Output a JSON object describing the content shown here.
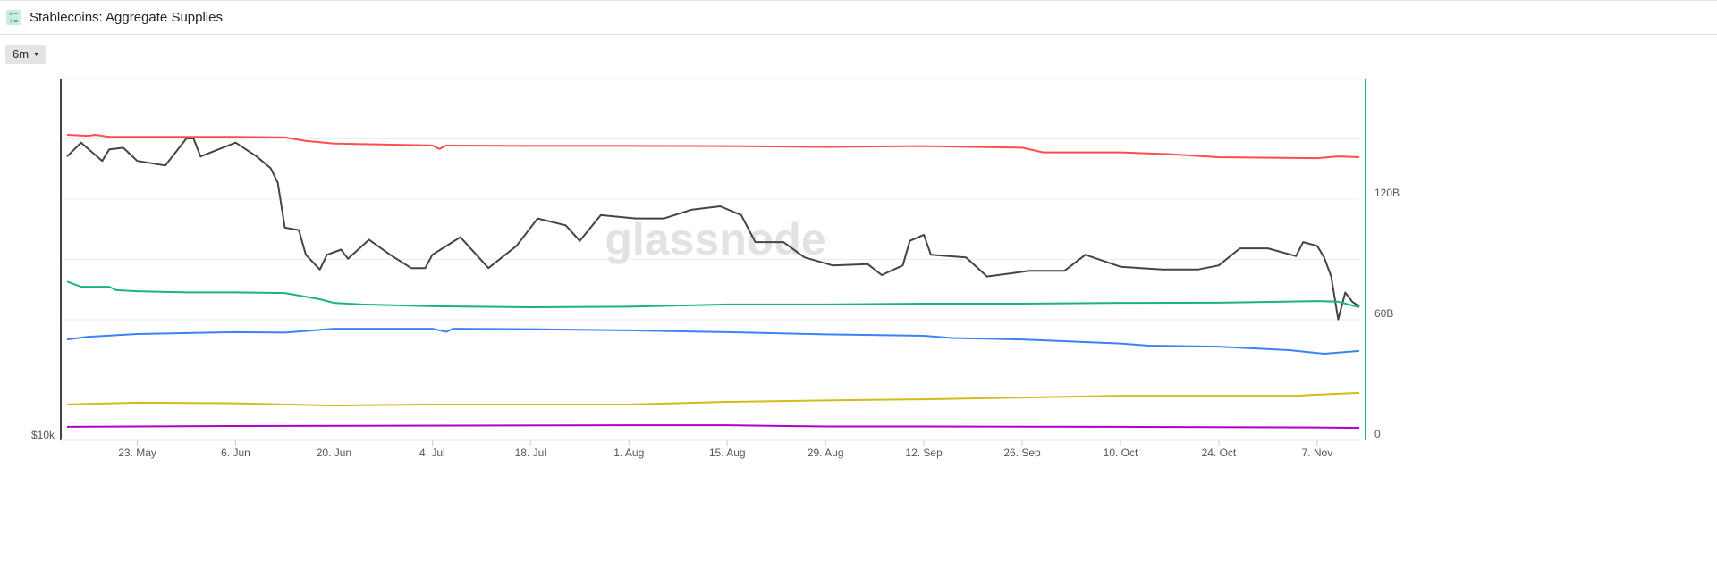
{
  "header": {
    "title": "Stablecoins: Aggregate Supplies",
    "icon": "calculator-icon"
  },
  "controls": {
    "range_label": "6m",
    "caret_icon": "caret-down-icon"
  },
  "watermark": "glassnode",
  "chart_data": {
    "type": "line",
    "title": "Stablecoins: Aggregate Supplies",
    "x_range": [
      "13 May",
      "13 Nov"
    ],
    "x_ticks": [
      "23. May",
      "6. Jun",
      "20. Jun",
      "4. Jul",
      "18. Jul",
      "1. Aug",
      "15. Aug",
      "29. Aug",
      "12. Sep",
      "26. Sep",
      "10. Oct",
      "24. Oct",
      "7. Nov"
    ],
    "x_tick_dates": [
      "23 May",
      "6 Jun",
      "20 Jun",
      "4 Jul",
      "18 Jul",
      "1 Aug",
      "15 Aug",
      "29 Aug",
      "12 Sep",
      "26 Sep",
      "10 Oct",
      "24 Oct",
      "7 Nov"
    ],
    "left_axis": {
      "scale": "log",
      "ticks": [
        "$10k"
      ],
      "tick_values": [
        10000
      ],
      "range": [
        10000,
        35000
      ],
      "color": "#444444"
    },
    "right_axis": {
      "scale": "linear",
      "ticks": [
        "0",
        "60B",
        "120B"
      ],
      "tick_values": [
        0,
        60,
        120
      ],
      "range": [
        0,
        180
      ],
      "unit": "B",
      "color": "#1db47a"
    },
    "grid": true,
    "gridline_values": [
      30,
      60,
      90,
      120,
      150,
      180
    ],
    "series": [
      {
        "axis": "left",
        "color": "#444444",
        "points": [
          [
            "13 May",
            29200
          ],
          [
            "15 May",
            30800
          ],
          [
            "18 May",
            28700
          ],
          [
            "19 May",
            30000
          ],
          [
            "21 May",
            30200
          ],
          [
            "23 May",
            28700
          ],
          [
            "27 May",
            28200
          ],
          [
            "30 May",
            31300
          ],
          [
            "31 May",
            31300
          ],
          [
            "1 Jun",
            29200
          ],
          [
            "6 Jun",
            30800
          ],
          [
            "9 Jun",
            29200
          ],
          [
            "11 Jun",
            27900
          ],
          [
            "12 Jun",
            26400
          ],
          [
            "13 Jun",
            22200
          ],
          [
            "15 Jun",
            22000
          ],
          [
            "16 Jun",
            20000
          ],
          [
            "18 Jun",
            18900
          ],
          [
            "19 Jun",
            20000
          ],
          [
            "21 Jun",
            20400
          ],
          [
            "22 Jun",
            19700
          ],
          [
            "25 Jun",
            21200
          ],
          [
            "28 Jun",
            20000
          ],
          [
            "1 Jul",
            19000
          ],
          [
            "3 Jul",
            19000
          ],
          [
            "4 Jul",
            20000
          ],
          [
            "8 Jul",
            21400
          ],
          [
            "12 Jul",
            19000
          ],
          [
            "16 Jul",
            20700
          ],
          [
            "19 Jul",
            23000
          ],
          [
            "23 Jul",
            22400
          ],
          [
            "25 Jul",
            21100
          ],
          [
            "28 Jul",
            23300
          ],
          [
            "2 Aug",
            23000
          ],
          [
            "6 Aug",
            23000
          ],
          [
            "10 Aug",
            23800
          ],
          [
            "14 Aug",
            24100
          ],
          [
            "17 Aug",
            23300
          ],
          [
            "19 Aug",
            21000
          ],
          [
            "23 Aug",
            21000
          ],
          [
            "26 Aug",
            19800
          ],
          [
            "30 Aug",
            19200
          ],
          [
            "4 Sep",
            19300
          ],
          [
            "6 Sep",
            18500
          ],
          [
            "9 Sep",
            19200
          ],
          [
            "10 Sep",
            21100
          ],
          [
            "12 Sep",
            21600
          ],
          [
            "13 Sep",
            20000
          ],
          [
            "18 Sep",
            19800
          ],
          [
            "21 Sep",
            18400
          ],
          [
            "27 Sep",
            18800
          ],
          [
            "2 Oct",
            18800
          ],
          [
            "5 Oct",
            20000
          ],
          [
            "10 Oct",
            19100
          ],
          [
            "16 Oct",
            18900
          ],
          [
            "21 Oct",
            18900
          ],
          [
            "24 Oct",
            19200
          ],
          [
            "27 Oct",
            20500
          ],
          [
            "31 Oct",
            20500
          ],
          [
            "4 Nov",
            19900
          ],
          [
            "5 Nov",
            21000
          ],
          [
            "7 Nov",
            20700
          ],
          [
            "8 Nov",
            19800
          ],
          [
            "9 Nov",
            18400
          ],
          [
            "10 Nov",
            15600
          ],
          [
            "11 Nov",
            17300
          ],
          [
            "12 Nov",
            16700
          ],
          [
            "13 Nov",
            16400
          ]
        ]
      },
      {
        "axis": "right",
        "color": "#ff4d4d",
        "points": [
          [
            "13 May",
            152
          ],
          [
            "16 May",
            151.5
          ],
          [
            "17 May",
            152
          ],
          [
            "19 May",
            151
          ],
          [
            "23 May",
            151
          ],
          [
            "6 Jun",
            151
          ],
          [
            "13 Jun",
            150.7
          ],
          [
            "16 Jun",
            149
          ],
          [
            "20 Jun",
            147.7
          ],
          [
            "4 Jul",
            146.7
          ],
          [
            "5 Jul",
            145
          ],
          [
            "6 Jul",
            146.7
          ],
          [
            "18 Jul",
            146.5
          ],
          [
            "1 Aug",
            146.5
          ],
          [
            "15 Aug",
            146.4
          ],
          [
            "29 Aug",
            146
          ],
          [
            "12 Sep",
            146.4
          ],
          [
            "26 Sep",
            145.6
          ],
          [
            "29 Sep",
            143.3
          ],
          [
            "10 Oct",
            143.3
          ],
          [
            "17 Oct",
            142.4
          ],
          [
            "24 Oct",
            140.9
          ],
          [
            "7 Nov",
            140.4
          ],
          [
            "10 Nov",
            141.3
          ],
          [
            "13 Nov",
            140.9
          ]
        ]
      },
      {
        "axis": "right",
        "color": "#1db47a",
        "points": [
          [
            "13 May",
            79
          ],
          [
            "15 May",
            76.4
          ],
          [
            "19 May",
            76.4
          ],
          [
            "20 May",
            74.7
          ],
          [
            "23 May",
            74.2
          ],
          [
            "30 May",
            73.6
          ],
          [
            "6 Jun",
            73.6
          ],
          [
            "13 Jun",
            73.3
          ],
          [
            "18 Jun",
            70.2
          ],
          [
            "20 Jun",
            68.4
          ],
          [
            "24 Jun",
            67.6
          ],
          [
            "4 Jul",
            66.7
          ],
          [
            "18 Jul",
            66.2
          ],
          [
            "1 Aug",
            66.5
          ],
          [
            "15 Aug",
            67.6
          ],
          [
            "29 Aug",
            67.6
          ],
          [
            "12 Sep",
            68
          ],
          [
            "26 Sep",
            68
          ],
          [
            "10 Oct",
            68.4
          ],
          [
            "24 Oct",
            68.5
          ],
          [
            "7 Nov",
            69.3
          ],
          [
            "10 Nov",
            69
          ],
          [
            "13 Nov",
            66.2
          ]
        ]
      },
      {
        "axis": "right",
        "color": "#3b82f6",
        "points": [
          [
            "13 May",
            50.2
          ],
          [
            "16 May",
            51.5
          ],
          [
            "23 May",
            52.9
          ],
          [
            "6 Jun",
            53.8
          ],
          [
            "13 Jun",
            53.6
          ],
          [
            "20 Jun",
            55.5
          ],
          [
            "4 Jul",
            55.5
          ],
          [
            "6 Jul",
            54
          ],
          [
            "7 Jul",
            55.5
          ],
          [
            "18 Jul",
            55.3
          ],
          [
            "1 Aug",
            54.7
          ],
          [
            "15 Aug",
            53.8
          ],
          [
            "29 Aug",
            52.7
          ],
          [
            "12 Sep",
            52.0
          ],
          [
            "16 Sep",
            50.9
          ],
          [
            "26 Sep",
            50.2
          ],
          [
            "10 Oct",
            48.2
          ],
          [
            "14 Oct",
            47.1
          ],
          [
            "24 Oct",
            46.6
          ],
          [
            "3 Nov",
            44.9
          ],
          [
            "8 Nov",
            43.1
          ],
          [
            "13 Nov",
            44.5
          ]
        ]
      },
      {
        "axis": "right",
        "color": "#d4bb1c",
        "points": [
          [
            "13 May",
            17.8
          ],
          [
            "23 May",
            18.7
          ],
          [
            "6 Jun",
            18.4
          ],
          [
            "20 Jun",
            17.3
          ],
          [
            "4 Jul",
            17.8
          ],
          [
            "1 Aug",
            17.8
          ],
          [
            "15 Aug",
            19.1
          ],
          [
            "29 Aug",
            19.8
          ],
          [
            "12 Sep",
            20.4
          ],
          [
            "26 Sep",
            21.3
          ],
          [
            "10 Oct",
            22.2
          ],
          [
            "4 Nov",
            22.2
          ],
          [
            "7 Nov",
            22.7
          ],
          [
            "13 Nov",
            23.6
          ]
        ]
      },
      {
        "axis": "right",
        "color": "#b000c8",
        "points": [
          [
            "13 May",
            6.7
          ],
          [
            "6 Jun",
            7.1
          ],
          [
            "1 Aug",
            7.5
          ],
          [
            "15 Aug",
            7.5
          ],
          [
            "29 Aug",
            6.9
          ],
          [
            "12 Sep",
            6.9
          ],
          [
            "10 Oct",
            6.7
          ],
          [
            "7 Nov",
            6.4
          ],
          [
            "13 Nov",
            6.2
          ]
        ]
      }
    ]
  }
}
